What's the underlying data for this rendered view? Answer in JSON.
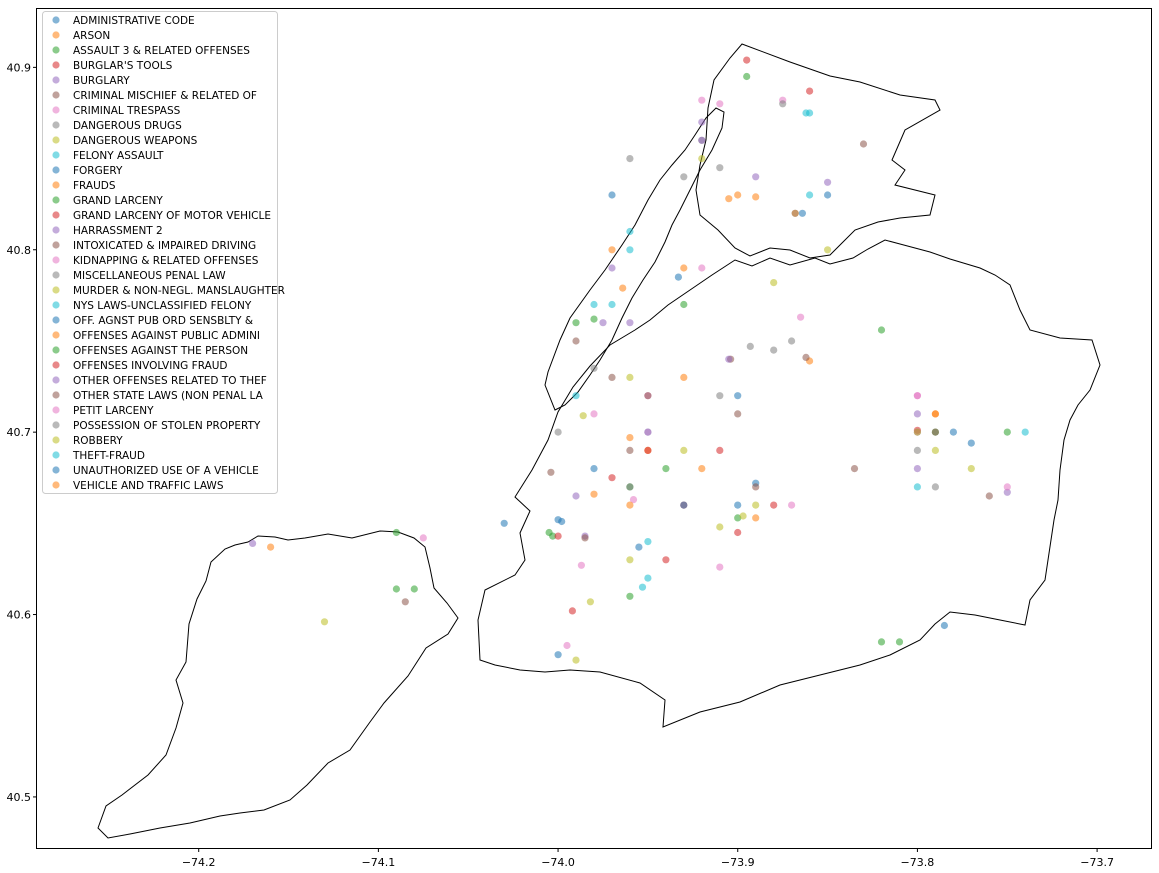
{
  "chart_data": {
    "type": "scatter",
    "title": "",
    "xlabel": "",
    "ylabel": "",
    "xlim": [
      -74.29,
      -73.67
    ],
    "ylim": [
      40.472,
      40.932
    ],
    "x_ticks": [
      -74.2,
      -74.1,
      -74.0,
      -73.9,
      -73.8,
      -73.7
    ],
    "x_tick_labels": [
      "−74.2",
      "−74.1",
      "−74.0",
      "−73.9",
      "−73.8",
      "−73.7"
    ],
    "y_ticks": [
      40.5,
      40.6,
      40.7,
      40.8,
      40.9
    ],
    "y_tick_labels": [
      "40.5",
      "40.6",
      "40.7",
      "40.8",
      "40.9"
    ],
    "grid": false,
    "legend_position": "upper-left",
    "marker_alpha": 0.55,
    "palette": [
      "#1f77b4",
      "#ff7f0e",
      "#2ca02c",
      "#d62728",
      "#9467bd",
      "#8c564b",
      "#e377c2",
      "#7f7f7f",
      "#bcbd22",
      "#17becf"
    ],
    "series": [
      {
        "name": "ADMINISTRATIVE CODE",
        "x": [
          -73.864,
          -73.868,
          -73.998,
          -74.0,
          -73.785
        ],
        "y": [
          40.82,
          40.82,
          40.651,
          40.652,
          40.594
        ]
      },
      {
        "name": "ARSON",
        "x": [
          -74.16,
          -73.86,
          -73.905,
          -73.89,
          -73.96
        ],
        "y": [
          40.637,
          40.739,
          40.828,
          40.829,
          40.697
        ]
      },
      {
        "name": "ASSAULT 3 & RELATED OFFENSES",
        "x": [
          -74.09,
          -73.895,
          -74.003,
          -74.005,
          -73.94,
          -73.82,
          -73.9
        ],
        "y": [
          40.645,
          40.895,
          40.643,
          40.645,
          40.68,
          40.756,
          40.653
        ]
      },
      {
        "name": "BURGLAR'S TOOLS",
        "x": [
          -73.895,
          -73.86,
          -73.93
        ],
        "y": [
          40.904,
          40.887,
          40.66
        ]
      },
      {
        "name": "BURGLARY",
        "x": [
          -74.17,
          -73.985,
          -73.92,
          -73.89,
          -73.97
        ],
        "y": [
          40.639,
          40.643,
          40.87,
          40.84,
          40.79
        ]
      },
      {
        "name": "CRIMINAL MISCHIEF & RELATED OF",
        "x": [
          -74.085,
          -73.985,
          -73.83,
          -73.862,
          -73.9,
          -73.96
        ],
        "y": [
          40.607,
          40.642,
          40.858,
          40.741,
          40.71,
          40.69
        ]
      },
      {
        "name": "CRIMINAL TRESPASS",
        "x": [
          -74.075,
          -73.875,
          -73.92,
          -73.958,
          -73.987
        ],
        "y": [
          40.642,
          40.882,
          40.882,
          40.663,
          40.627
        ]
      },
      {
        "name": "DANGEROUS DRUGS",
        "x": [
          -73.88,
          -73.92,
          -73.875,
          -73.91,
          -73.98
        ],
        "y": [
          40.745,
          40.86,
          40.88,
          40.845,
          40.735
        ]
      },
      {
        "name": "DANGEROUS WEAPONS",
        "x": [
          -74.13,
          -73.982,
          -73.91,
          -73.897,
          -73.99
        ],
        "y": [
          40.596,
          40.607,
          40.648,
          40.654,
          40.575
        ]
      },
      {
        "name": "FELONY ASSAULT",
        "x": [
          -73.953,
          -73.862,
          -73.96,
          -73.98,
          -73.74
        ],
        "y": [
          40.615,
          40.875,
          40.81,
          40.77,
          40.7
        ]
      },
      {
        "name": "FORGERY",
        "x": [
          -73.955,
          -74.0,
          -74.03,
          -73.9,
          -73.85
        ],
        "y": [
          40.637,
          40.578,
          40.65,
          40.72,
          40.83
        ]
      },
      {
        "name": "FRAUDS",
        "x": [
          -73.89,
          -73.79,
          -73.93,
          -73.95,
          -73.97
        ],
        "y": [
          40.653,
          40.71,
          40.73,
          40.69,
          40.8
        ]
      },
      {
        "name": "GRAND LARCENY",
        "x": [
          -74.09,
          -73.82,
          -73.81,
          -73.93,
          -73.96,
          -73.99
        ],
        "y": [
          40.614,
          40.585,
          40.585,
          40.77,
          40.67,
          40.76
        ]
      },
      {
        "name": "GRAND LARCENY OF MOTOR VEHICLE",
        "x": [
          -73.97,
          -73.992,
          -73.94,
          -73.91
        ],
        "y": [
          40.675,
          40.602,
          40.63,
          40.69
        ]
      },
      {
        "name": "HARRASSMENT 2",
        "x": [
          -73.85,
          -73.99,
          -73.8,
          -73.75,
          -73.96
        ],
        "y": [
          40.837,
          40.665,
          40.68,
          40.667,
          40.76
        ]
      },
      {
        "name": "INTOXICATED & IMPAIRED DRIVING",
        "x": [
          -73.835,
          -73.904,
          -74.004,
          -73.97,
          -73.76
        ],
        "y": [
          40.68,
          40.74,
          40.678,
          40.73,
          40.665
        ]
      },
      {
        "name": "KIDNAPPING & RELATED OFFENSES",
        "x": [
          -73.91,
          -73.995,
          -73.95,
          -73.8,
          -73.75
        ],
        "y": [
          40.626,
          40.583,
          40.72,
          40.72,
          40.67
        ]
      },
      {
        "name": "MISCELLANEOUS PENAL LAW",
        "x": [
          -73.893,
          -73.91,
          -73.79,
          -73.96,
          -74.0
        ],
        "y": [
          40.747,
          40.72,
          40.67,
          40.85,
          40.7
        ]
      },
      {
        "name": "MURDER & NON-NEGL. MANSLAUGHTER",
        "x": [
          -73.88,
          -73.93,
          -73.986,
          -73.96,
          -73.77
        ],
        "y": [
          40.782,
          40.69,
          40.709,
          40.63,
          40.68
        ]
      },
      {
        "name": "NYS LAWS-UNCLASSIFIED FELONY",
        "x": [
          -73.97,
          -73.86,
          -73.95,
          -73.8,
          -73.99
        ],
        "y": [
          40.77,
          40.875,
          40.62,
          40.67,
          40.72
        ]
      },
      {
        "name": "OFF. AGNST PUB ORD SENSBLTY &",
        "x": [
          -73.933,
          -73.89,
          -73.95,
          -73.77,
          -73.98
        ],
        "y": [
          40.785,
          40.672,
          40.7,
          40.694,
          40.68
        ]
      },
      {
        "name": "OFFENSES AGAINST PUBLIC ADMINI",
        "x": [
          -73.93,
          -73.964,
          -73.868,
          -73.98,
          -73.79
        ],
        "y": [
          40.79,
          40.779,
          40.82,
          40.666,
          40.71
        ]
      },
      {
        "name": "OFFENSES AGAINST THE PERSON",
        "x": [
          -74.08,
          -73.98,
          -73.96,
          -73.79,
          -73.75
        ],
        "y": [
          40.614,
          40.762,
          40.61,
          40.7,
          40.7
        ]
      },
      {
        "name": "OFFENSES INVOLVING FRAUD",
        "x": [
          -74.0,
          -73.9,
          -73.8,
          -73.95,
          -73.88
        ],
        "y": [
          40.643,
          40.645,
          40.701,
          40.69,
          40.66
        ]
      },
      {
        "name": "OTHER OFFENSES RELATED TO THEF",
        "x": [
          -73.905,
          -73.975,
          -73.8,
          -73.92
        ],
        "y": [
          40.74,
          40.76,
          40.71,
          40.86
        ]
      },
      {
        "name": "OTHER STATE LAWS (NON PENAL LA",
        "x": [
          -73.89,
          -73.95,
          -73.79,
          -73.99
        ],
        "y": [
          40.67,
          40.72,
          40.7,
          40.75
        ]
      },
      {
        "name": "PETIT LARCENY",
        "x": [
          -73.91,
          -73.8,
          -73.95,
          -73.92,
          -73.98,
          -73.865,
          -73.87
        ],
        "y": [
          40.88,
          40.72,
          40.7,
          40.79,
          40.71,
          40.763,
          40.66
        ]
      },
      {
        "name": "POSSESSION OF STOLEN PROPERTY",
        "x": [
          -73.8,
          -73.93,
          -73.96,
          -73.87
        ],
        "y": [
          40.69,
          40.84,
          40.67,
          40.75
        ]
      },
      {
        "name": "ROBBERY",
        "x": [
          -73.92,
          -73.79,
          -73.96,
          -73.89,
          -73.85
        ],
        "y": [
          40.85,
          40.69,
          40.73,
          40.66,
          40.8
        ]
      },
      {
        "name": "THEFT-FRAUD",
        "x": [
          -73.96,
          -73.8,
          -73.95,
          -73.86
        ],
        "y": [
          40.8,
          40.7,
          40.64,
          40.83
        ]
      },
      {
        "name": "UNAUTHORIZED USE OF A VEHICLE",
        "x": [
          -73.9,
          -73.78,
          -73.97,
          -73.93
        ],
        "y": [
          40.66,
          40.7,
          40.83,
          40.66
        ]
      },
      {
        "name": "VEHICLE AND TRAFFIC LAWS",
        "x": [
          -73.92,
          -73.96,
          -73.8,
          -73.9
        ],
        "y": [
          40.68,
          40.66,
          40.7,
          40.83
        ]
      }
    ]
  }
}
